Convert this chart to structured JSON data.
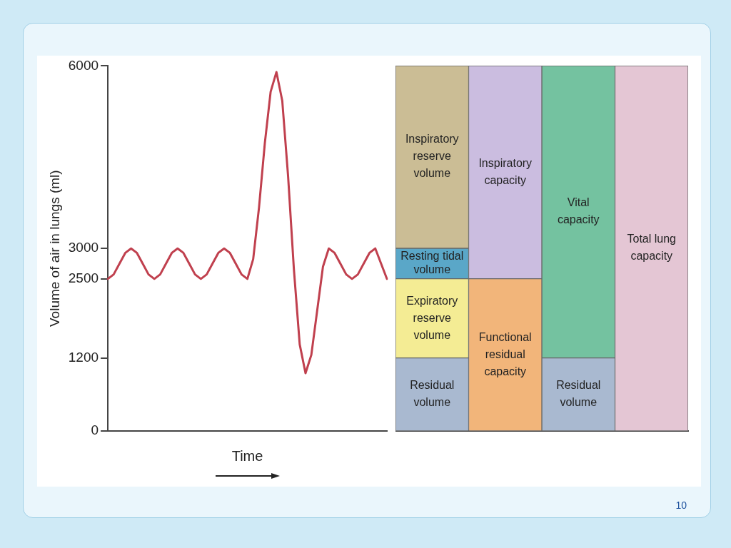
{
  "chart_data": [
    {
      "type": "line",
      "ylabel": "Volume of air in lungs (ml)",
      "xlabel": "Time",
      "annotations": [
        "10"
      ],
      "categories": [
        null,
        null,
        null,
        null,
        null,
        null,
        null,
        null,
        null,
        null,
        null,
        null,
        null,
        null,
        null,
        null,
        null,
        null,
        null,
        null,
        null,
        null,
        null,
        null,
        null,
        null,
        null,
        null,
        null,
        null,
        null,
        null,
        null,
        null,
        null,
        null,
        null,
        null,
        null,
        null,
        null,
        null,
        null,
        null,
        null,
        null,
        null,
        null,
        null
      ],
      "ylim": [
        0,
        6000
      ],
      "yticks": [
        0,
        1200,
        2500,
        3000,
        6000
      ],
      "tick_labels": "y",
      "grid": false,
      "legend": false,
      "marker": "none",
      "line_style": "solid",
      "series": [
        {
          "color": "#c0404e",
          "values": [
            2500,
            2573,
            2750,
            2927,
            3000,
            2927,
            2750,
            2573,
            2500,
            2573,
            2750,
            2927,
            3000,
            2927,
            2750,
            2573,
            2500,
            2573,
            2750,
            2927,
            3000,
            2927,
            2750,
            2573,
            2500,
            2825,
            3673,
            4727,
            5575,
            5900,
            5427,
            4192,
            2658,
            1423,
            950,
            1250,
            1975,
            2700,
            3000,
            2927,
            2750,
            2573,
            2500,
            2573,
            2750,
            2927,
            3000,
            2750,
            2500
          ]
        }
      ]
    },
    {
      "type": "bar",
      "stacked": true,
      "categories": [
        null,
        null,
        null,
        null
      ],
      "ylim": [
        0,
        6000
      ],
      "yticks": [
        0,
        1200,
        2500,
        3000,
        6000
      ],
      "tick_labels": false,
      "grid": false,
      "legend": false,
      "series": [
        {
          "name": "Residual volume",
          "color": "#a9b9d0",
          "values": [
            1200,
            null,
            null,
            null
          ]
        },
        {
          "name": "Expiratory reserve volume",
          "color": "#f4ec94",
          "values": [
            1300,
            null,
            null,
            null
          ]
        },
        {
          "name": "Resting tidal volume",
          "color": "#5aa7c8",
          "values": [
            500,
            null,
            null,
            null
          ]
        },
        {
          "name": "Inspiratory reserve volume",
          "color": "#cbbd95",
          "values": [
            3000,
            null,
            null,
            null
          ]
        },
        {
          "name": "Functional residual capacity",
          "color": "#f2b57a",
          "values": [
            null,
            2500,
            null,
            null
          ]
        },
        {
          "name": "Inspiratory capacity",
          "color": "#cbbde0",
          "values": [
            null,
            3500,
            null,
            null
          ]
        },
        {
          "name": "Residual volume",
          "color": "#a9b9d0",
          "values": [
            null,
            null,
            1200,
            null
          ]
        },
        {
          "name": "Vital capacity",
          "color": "#74c2a0",
          "values": [
            null,
            null,
            4800,
            null
          ]
        },
        {
          "name": "Total lung capacity",
          "color": "#e4c6d4",
          "values": [
            null,
            null,
            null,
            6000
          ]
        }
      ]
    }
  ]
}
